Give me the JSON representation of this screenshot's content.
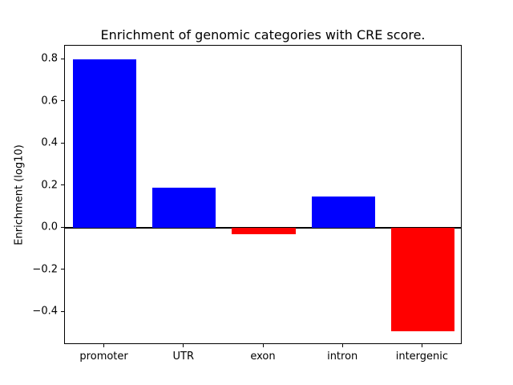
{
  "chart_data": {
    "type": "bar",
    "title": "Enrichment of genomic categories with CRE score.",
    "xlabel": "",
    "ylabel": "Enrichment (log10)",
    "categories": [
      "promoter",
      "UTR",
      "exon",
      "intron",
      "intergenic"
    ],
    "values": [
      0.8,
      0.19,
      -0.03,
      0.15,
      -0.49
    ],
    "positive_color": "#0000ff",
    "negative_color": "#ff0000",
    "ylim": [
      -0.555,
      0.865
    ],
    "yticks": [
      -0.4,
      -0.2,
      0.0,
      0.2,
      0.4,
      0.6,
      0.8
    ],
    "ytick_labels": [
      "−0.4",
      "−0.2",
      "0.0",
      "0.2",
      "0.4",
      "0.6",
      "0.8"
    ],
    "zero_line": true,
    "grid": false,
    "legend": "none",
    "background_color": "#ffffff"
  }
}
